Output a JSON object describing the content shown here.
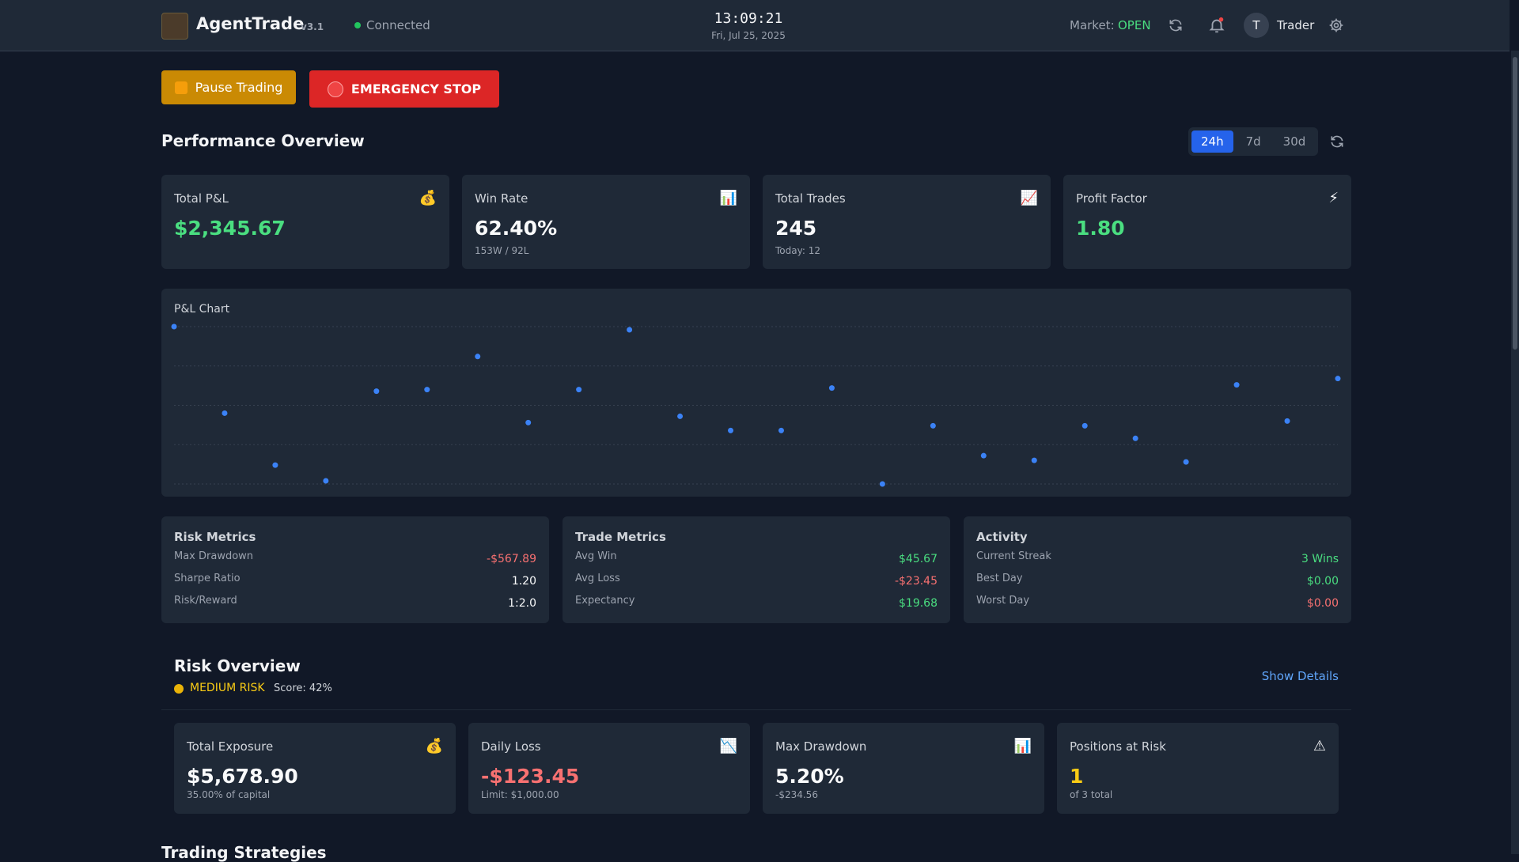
{
  "header": {
    "brand": "AgentTrade",
    "version": "v3.1",
    "status": "Connected",
    "time": "13:09:21",
    "date": "Fri, Jul 25, 2025",
    "market_label": "Market:",
    "market_status": "OPEN",
    "user_initial": "T",
    "user_name": "Trader"
  },
  "controls": {
    "pause": "Pause Trading",
    "emergency": "EMERGENCY STOP"
  },
  "performance": {
    "title": "Performance Overview",
    "ranges": [
      "24h",
      "7d",
      "30d"
    ],
    "active_range": "24h",
    "cards": [
      {
        "label": "Total P&L",
        "icon": "💰",
        "value": "$2,345.67",
        "tone": "green"
      },
      {
        "label": "Win Rate",
        "icon": "📊",
        "value": "62.40%",
        "sub": "153W / 92L",
        "tone": "plain"
      },
      {
        "label": "Total Trades",
        "icon": "📈",
        "value": "245",
        "sub": "Today: 12",
        "tone": "plain"
      },
      {
        "label": "Profit Factor",
        "icon": "⚡",
        "value": "1.80",
        "tone": "green"
      }
    ]
  },
  "pnl_chart": {
    "type": "scatter",
    "title": "P&L Chart",
    "values": [
      100,
      45,
      12,
      2,
      59,
      60,
      81,
      39,
      60,
      98,
      43,
      34,
      34,
      61,
      0,
      37,
      18,
      15,
      37,
      29,
      14,
      63,
      40,
      67
    ],
    "ylim": [
      0,
      100
    ],
    "yticks": [
      0,
      25,
      50,
      75,
      100
    ],
    "grid": true,
    "color": "#3b82f6"
  },
  "metrics": [
    {
      "title": "Risk Metrics",
      "rows": [
        {
          "label": "Max Drawdown",
          "value": "-$567.89",
          "tone": "red"
        },
        {
          "label": "Sharpe Ratio",
          "value": "1.20",
          "tone": "plain"
        },
        {
          "label": "Risk/Reward",
          "value": "1:2.0",
          "tone": "plain"
        }
      ]
    },
    {
      "title": "Trade Metrics",
      "rows": [
        {
          "label": "Avg Win",
          "value": "$45.67",
          "tone": "green"
        },
        {
          "label": "Avg Loss",
          "value": "-$23.45",
          "tone": "red"
        },
        {
          "label": "Expectancy",
          "value": "$19.68",
          "tone": "green"
        }
      ]
    },
    {
      "title": "Activity",
      "rows": [
        {
          "label": "Current Streak",
          "value": "3 Wins",
          "tone": "green"
        },
        {
          "label": "Best Day",
          "value": "$0.00",
          "tone": "green"
        },
        {
          "label": "Worst Day",
          "value": "$0.00",
          "tone": "red"
        }
      ]
    }
  ],
  "risk_overview": {
    "title": "Risk Overview",
    "level": "MEDIUM RISK",
    "score": "Score: 42%",
    "details": "Show Details",
    "cards": [
      {
        "label": "Total Exposure",
        "icon": "💰",
        "value": "$5,678.90",
        "sub": "35.00% of capital",
        "tone": "plain"
      },
      {
        "label": "Daily Loss",
        "icon": "📉",
        "value": "-$123.45",
        "sub": "Limit: $1,000.00",
        "tone": "red"
      },
      {
        "label": "Max Drawdown",
        "icon": "📊",
        "value": "5.20%",
        "sub": "-$234.56",
        "tone": "plain"
      },
      {
        "label": "Positions at Risk",
        "icon": "⚠",
        "value": "1",
        "sub": "of 3 total",
        "tone": "yellow"
      }
    ]
  },
  "strategies": {
    "title": "Trading Strategies"
  }
}
